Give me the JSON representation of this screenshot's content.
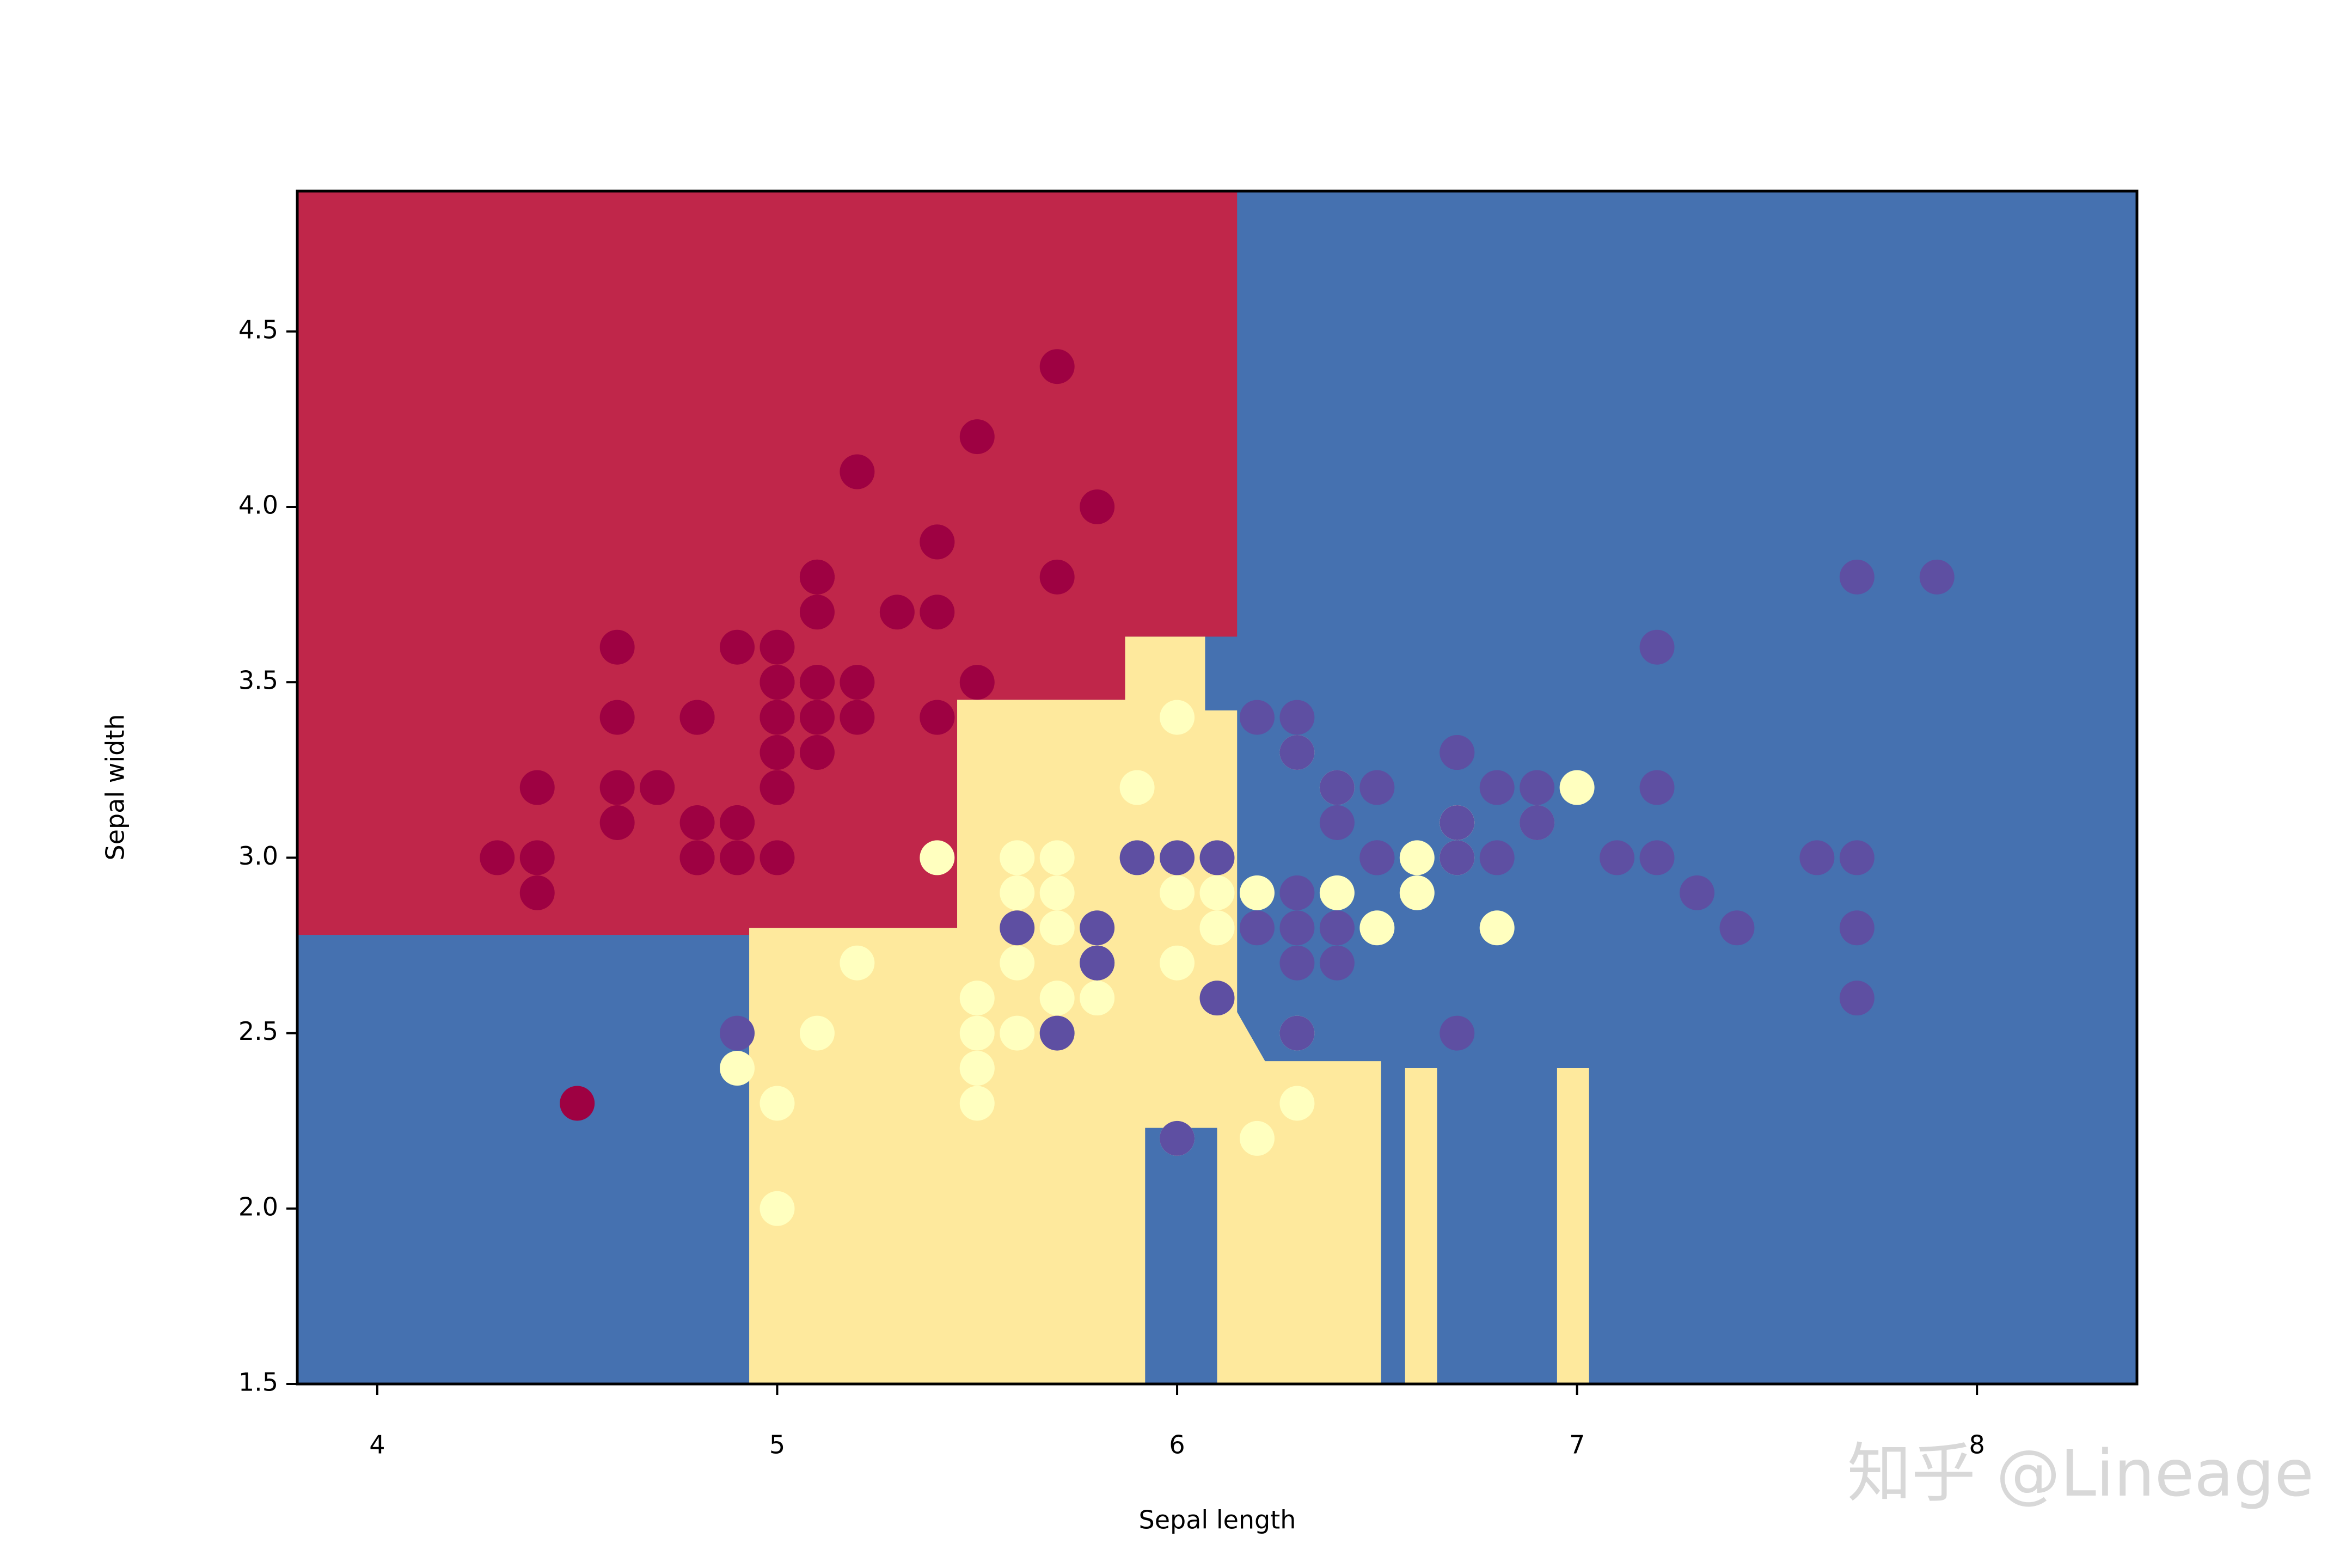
{
  "chart_data": {
    "type": "scatter",
    "xlabel": "Sepal length",
    "ylabel": "Sepal width",
    "watermark": "知乎 @Lineage",
    "xlim": [
      3.8,
      8.4
    ],
    "ylim": [
      1.5,
      4.9
    ],
    "xticks": [
      4,
      5,
      6,
      7,
      8
    ],
    "yticks": [
      1.5,
      {
        "value": 2,
        "label": "2.0"
      },
      2.5,
      {
        "value": 3,
        "label": "3.0"
      },
      3.5,
      {
        "value": 4,
        "label": "4.0"
      },
      4.5
    ],
    "background": "#4571b0",
    "regions": [
      {
        "color": "#c0264a",
        "x": [
          3.8,
          6.15,
          6.15,
          5.87,
          5.87,
          5.45,
          5.45,
          4.93,
          4.93,
          3.8
        ],
        "y": [
          4.9,
          4.9,
          3.63,
          3.63,
          3.45,
          3.45,
          2.8,
          2.8,
          2.78,
          2.78
        ]
      },
      {
        "color": "#fee99d",
        "x": [
          4.93,
          4.93,
          5.45,
          5.45,
          5.87,
          5.87,
          6.07,
          6.07,
          6.15,
          6.15,
          6.22,
          6.51,
          6.51,
          6.1,
          6.1,
          5.92,
          5.92
        ],
        "y": [
          1.5,
          2.8,
          2.8,
          3.45,
          3.45,
          3.63,
          3.63,
          3.42,
          3.42,
          2.56,
          2.42,
          2.42,
          1.5,
          1.5,
          2.23,
          2.23,
          1.5
        ]
      },
      {
        "color": "#fee99d",
        "x": [
          6.57,
          6.57,
          6.65,
          6.65
        ],
        "y": [
          1.5,
          2.4,
          2.4,
          1.5
        ]
      },
      {
        "color": "#fee99d",
        "x": [
          6.95,
          6.95,
          7.03,
          7.03
        ],
        "y": [
          1.5,
          2.4,
          2.4,
          1.5
        ]
      }
    ],
    "series": [
      {
        "color": "#9e0142",
        "x": [
          5.1,
          4.9,
          4.7,
          4.6,
          5.0,
          5.4,
          4.6,
          5.0,
          4.4,
          4.9,
          5.4,
          4.8,
          4.8,
          4.3,
          5.8,
          5.7,
          5.4,
          5.1,
          5.7,
          5.1,
          5.4,
          5.1,
          4.6,
          5.1,
          4.8,
          5.0,
          5.0,
          5.2,
          5.2,
          4.7,
          4.8,
          5.4,
          5.2,
          5.5,
          4.9,
          5.0,
          5.5,
          4.9,
          4.4,
          5.1,
          5.0,
          4.5,
          4.4,
          5.0,
          5.1,
          4.8,
          5.1,
          4.6,
          5.3,
          5.0
        ],
        "y": [
          3.5,
          3.0,
          3.2,
          3.1,
          3.6,
          3.9,
          3.4,
          3.4,
          2.9,
          3.1,
          3.7,
          3.4,
          3.0,
          3.0,
          4.0,
          4.4,
          3.9,
          3.5,
          3.8,
          3.8,
          3.4,
          3.7,
          3.6,
          3.3,
          3.4,
          3.0,
          3.4,
          3.5,
          3.4,
          3.2,
          3.1,
          3.4,
          4.1,
          4.2,
          3.1,
          3.2,
          3.5,
          3.6,
          3.0,
          3.4,
          3.5,
          2.3,
          3.2,
          3.5,
          3.8,
          3.0,
          3.8,
          3.2,
          3.7,
          3.3
        ]
      },
      {
        "color": "#ffffbf",
        "x": [
          7.0,
          6.4,
          6.9,
          5.5,
          6.5,
          5.7,
          6.3,
          4.9,
          6.6,
          5.2,
          5.0,
          5.9,
          6.0,
          6.1,
          5.6,
          6.7,
          5.6,
          5.8,
          6.2,
          5.6,
          5.9,
          6.1,
          6.3,
          6.1,
          6.4,
          6.6,
          6.8,
          6.7,
          6.0,
          5.7,
          5.5,
          5.5,
          5.8,
          6.0,
          5.4,
          6.0,
          6.7,
          6.3,
          5.6,
          5.5,
          5.5,
          6.1,
          5.8,
          5.0,
          5.6,
          5.7,
          5.7,
          6.2,
          5.1,
          5.7
        ],
        "y": [
          3.2,
          3.2,
          3.1,
          2.3,
          2.8,
          2.8,
          3.3,
          2.4,
          2.9,
          2.7,
          2.0,
          3.0,
          2.2,
          2.9,
          2.9,
          3.1,
          3.0,
          2.7,
          2.2,
          2.5,
          3.2,
          2.8,
          2.5,
          2.8,
          2.9,
          3.0,
          2.8,
          3.0,
          2.9,
          2.6,
          2.4,
          2.4,
          2.7,
          2.7,
          3.0,
          3.4,
          3.1,
          2.3,
          3.0,
          2.5,
          2.6,
          3.0,
          2.6,
          2.3,
          2.7,
          3.0,
          2.9,
          2.9,
          2.5,
          2.8
        ]
      },
      {
        "color": "#5e4fa2",
        "x": [
          6.3,
          5.8,
          7.1,
          6.3,
          6.5,
          7.6,
          4.9,
          7.3,
          6.7,
          7.2,
          6.5,
          6.4,
          6.8,
          5.7,
          5.8,
          6.4,
          6.5,
          7.7,
          7.7,
          6.0,
          6.9,
          5.6,
          7.7,
          6.3,
          6.7,
          7.2,
          6.2,
          6.1,
          6.4,
          7.2,
          7.4,
          7.9,
          6.4,
          6.3,
          6.1,
          7.7,
          6.3,
          6.4,
          6.0,
          6.9,
          6.7,
          6.9,
          5.8,
          6.8,
          6.7,
          6.7,
          6.3,
          6.5,
          6.2,
          5.9
        ],
        "y": [
          3.3,
          2.7,
          3.0,
          2.9,
          3.0,
          3.0,
          2.5,
          2.9,
          2.5,
          3.6,
          3.2,
          2.7,
          3.0,
          2.5,
          2.8,
          3.2,
          3.0,
          3.8,
          2.6,
          2.2,
          3.2,
          2.8,
          2.8,
          2.7,
          3.3,
          3.2,
          2.8,
          3.0,
          2.8,
          3.0,
          2.8,
          3.8,
          2.8,
          2.8,
          2.6,
          3.0,
          3.4,
          3.1,
          3.0,
          3.1,
          3.1,
          3.1,
          2.7,
          3.2,
          3.3,
          3.0,
          2.5,
          3.0,
          3.4,
          3.0
        ]
      }
    ]
  }
}
